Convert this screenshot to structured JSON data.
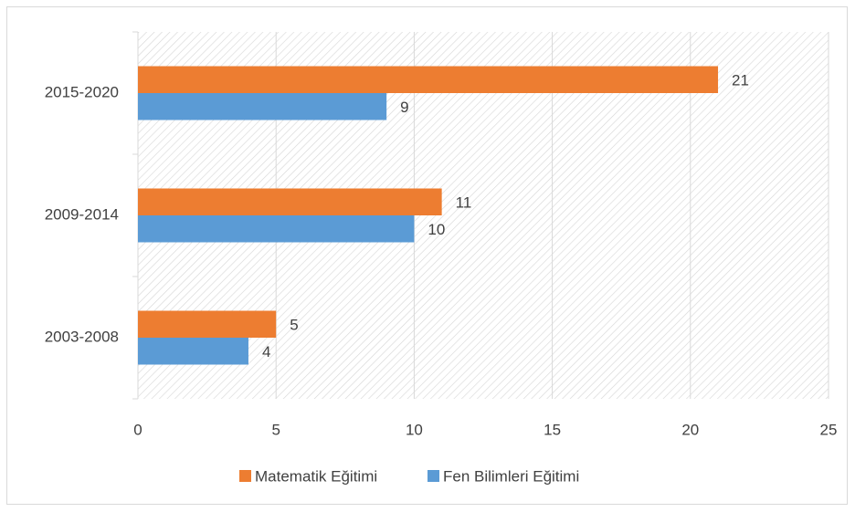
{
  "chart_data": {
    "type": "hbar",
    "categories": [
      "2003-2008",
      "2009-2014",
      "2015-2020"
    ],
    "series": [
      {
        "name": "Matematik Eğitimi",
        "color": "#ed7d31",
        "values": [
          5,
          11,
          21
        ]
      },
      {
        "name": "Fen Bilimleri Eğitimi",
        "color": "#5b9bd5",
        "values": [
          4,
          10,
          9
        ]
      }
    ],
    "xlim": [
      0,
      25
    ],
    "xticks": [
      0,
      5,
      10,
      15,
      20,
      25
    ],
    "grid": true,
    "legend": "bottom"
  }
}
